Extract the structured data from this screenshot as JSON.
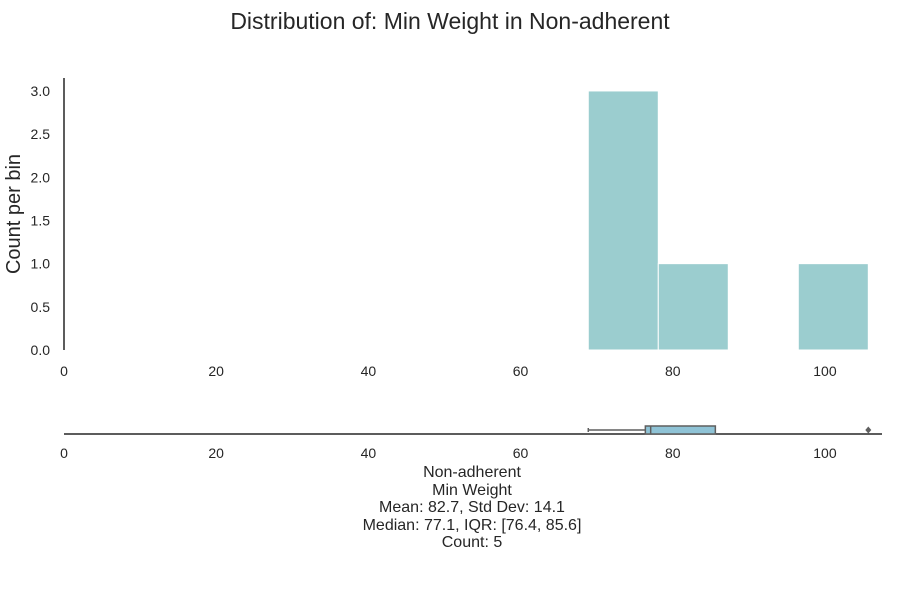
{
  "chart_data": {
    "type": "bar",
    "title": "Distribution of: Min Weight in Non-adherent",
    "ylabel": "Count per bin",
    "xlabel": "",
    "xlim": [
      0,
      107.5
    ],
    "ylim": [
      0,
      3.15
    ],
    "x_ticks": [
      "0",
      "20",
      "40",
      "60",
      "80",
      "100"
    ],
    "x_tick_values": [
      0,
      20,
      40,
      60,
      80,
      100
    ],
    "y_ticks": [
      "0.0",
      "0.5",
      "1.0",
      "1.5",
      "2.0",
      "2.5",
      "3.0"
    ],
    "y_tick_values": [
      0,
      0.5,
      1,
      1.5,
      2,
      2.5,
      3
    ],
    "bins": [
      {
        "start": 68.9,
        "end": 78.1,
        "count": 3
      },
      {
        "start": 78.1,
        "end": 87.3,
        "count": 1
      },
      {
        "start": 87.3,
        "end": 96.5,
        "count": 0
      },
      {
        "start": 96.5,
        "end": 105.7,
        "count": 1
      }
    ],
    "bar_color": "#9bcdcf",
    "grid": false,
    "boxplot": {
      "whisker_low": 68.9,
      "q1": 76.4,
      "median": 77.1,
      "q3": 85.6,
      "whisker_high": 85.6,
      "outliers": [
        105.7
      ],
      "box_color": "#8fc3d6"
    }
  },
  "caption": {
    "group": "Non-adherent",
    "variable": "Min Weight",
    "mean_line": "Mean: 82.7, Std Dev: 14.1",
    "median_line": "Median: 77.1, IQR: [76.4, 85.6]",
    "count_line": "Count: 5"
  }
}
